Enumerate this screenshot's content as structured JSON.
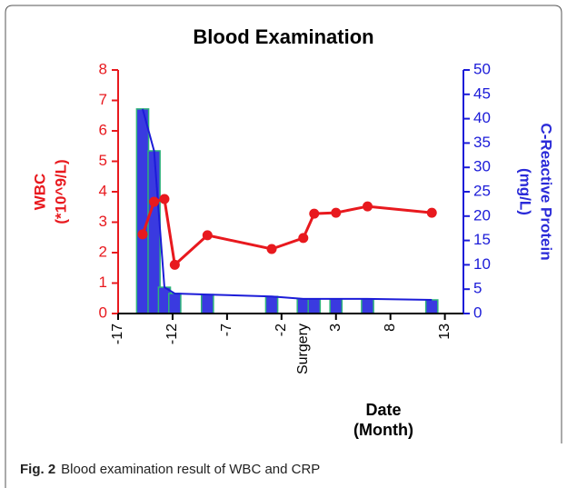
{
  "chart_data": {
    "type": "combo",
    "title": "Blood Examination",
    "xlabel": [
      "Date",
      "(Month)"
    ],
    "ylabel": [
      "WBC",
      "(*10^9/L)"
    ],
    "y2label": [
      "C-Reactive Protein",
      "(mg/L)"
    ],
    "xlim": [
      -17,
      14.7
    ],
    "xticks": [
      -17,
      -12,
      -7,
      -2,
      3,
      8,
      13
    ],
    "ylim": [
      0,
      8
    ],
    "yticks": [
      0,
      1,
      2,
      3,
      4,
      5,
      6,
      7,
      8
    ],
    "y2lim": [
      0,
      50
    ],
    "y2ticks": [
      0,
      5,
      10,
      15,
      20,
      25,
      30,
      35,
      40,
      45,
      50
    ],
    "annotations": [
      {
        "text": "Surgery",
        "x": 0
      }
    ],
    "series": [
      {
        "type": "line",
        "axis": "y",
        "color": "#e8191e",
        "x": [
          -14.75,
          -13.7,
          -12.75,
          -11.8,
          -8.8,
          -2.9,
          0,
          1,
          3,
          5.9,
          11.8
        ],
        "values": [
          2.6,
          3.67,
          3.76,
          1.6,
          2.57,
          2.12,
          2.48,
          3.28,
          3.31,
          3.52,
          3.31
        ]
      },
      {
        "type": "bar_line",
        "axis": "y2",
        "color": "#3a3ae0",
        "edge_color": "#2db37a",
        "line_color": "#1c1cd8",
        "x": [
          -14.75,
          -13.7,
          -12.75,
          -11.8,
          -8.8,
          -2.9,
          0,
          1,
          3,
          5.9,
          11.8
        ],
        "values": [
          42,
          33.4,
          5.4,
          4.1,
          3.9,
          3.5,
          3.0,
          3.0,
          3.0,
          3.0,
          2.8
        ]
      }
    ],
    "caption": {
      "label": "Fig. 2",
      "text": "Blood examination result of WBC and CRP"
    }
  }
}
